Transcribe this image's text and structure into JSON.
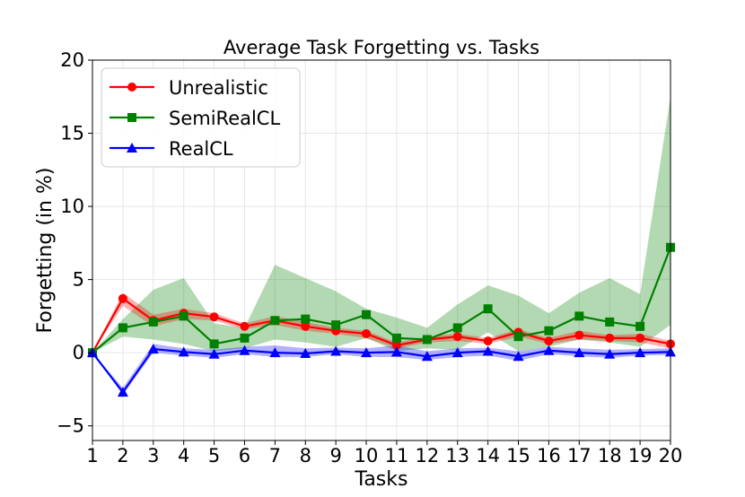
{
  "chart_data": {
    "type": "line",
    "title": "Average Task Forgetting vs. Tasks",
    "xlabel": "Tasks",
    "ylabel": "Forgetting (in %)",
    "x": [
      1,
      2,
      3,
      4,
      5,
      6,
      7,
      8,
      9,
      10,
      11,
      12,
      13,
      14,
      15,
      16,
      17,
      18,
      19,
      20
    ],
    "xlim": [
      1,
      20
    ],
    "ylim": [
      -6,
      20
    ],
    "xticks": [
      "1",
      "2",
      "3",
      "4",
      "5",
      "6",
      "7",
      "8",
      "9",
      "10",
      "11",
      "12",
      "13",
      "14",
      "15",
      "16",
      "17",
      "18",
      "19",
      "20"
    ],
    "yticks": [
      "−5",
      "0",
      "5",
      "10",
      "15",
      "20"
    ],
    "ytick_values": [
      -5,
      0,
      5,
      10,
      15,
      20
    ],
    "grid": true,
    "legend_position": "top-left",
    "series": [
      {
        "name": "Unrealistic",
        "color": "#ff0000",
        "marker": "circle",
        "values": [
          0,
          3.7,
          2.2,
          2.7,
          2.45,
          1.8,
          2.2,
          1.8,
          1.5,
          1.3,
          0.5,
          0.9,
          1.1,
          0.8,
          1.4,
          0.8,
          1.2,
          1.0,
          1.0,
          0.6
        ],
        "lower": [
          0,
          3.2,
          1.8,
          2.3,
          2.2,
          1.6,
          1.9,
          1.5,
          1.3,
          1.0,
          0.3,
          0.7,
          0.8,
          0.6,
          1.1,
          0.6,
          0.9,
          0.8,
          0.7,
          0.3
        ],
        "upper": [
          0,
          4.1,
          2.6,
          3.0,
          2.7,
          2.0,
          2.5,
          2.1,
          1.7,
          1.5,
          0.7,
          1.1,
          1.3,
          1.0,
          1.6,
          1.0,
          1.5,
          1.2,
          1.3,
          0.8
        ]
      },
      {
        "name": "SemiRealCL",
        "color": "#008000",
        "marker": "square",
        "values": [
          0,
          1.7,
          2.1,
          2.5,
          0.6,
          1.0,
          2.2,
          2.3,
          1.9,
          2.6,
          1.0,
          0.9,
          1.7,
          3.0,
          1.1,
          1.5,
          2.5,
          2.1,
          1.8,
          7.2
        ],
        "lower": [
          0,
          1.1,
          0.9,
          0.6,
          0.1,
          0.3,
          0.9,
          0.7,
          0.4,
          1.0,
          0.1,
          0.3,
          0.2,
          1.4,
          0.1,
          0.4,
          0.9,
          0.7,
          0.4,
          1.9
        ],
        "upper": [
          0,
          2.3,
          4.3,
          5.1,
          2.0,
          1.7,
          6.0,
          5.1,
          4.2,
          3.0,
          2.4,
          1.7,
          3.3,
          4.6,
          3.9,
          2.7,
          4.1,
          5.1,
          4.0,
          17.5
        ]
      },
      {
        "name": "RealCL",
        "color": "#0000ff",
        "marker": "triangle",
        "values": [
          0,
          -2.7,
          0.25,
          0.05,
          -0.1,
          0.15,
          0.0,
          -0.05,
          0.1,
          0.0,
          0.05,
          -0.25,
          0.0,
          0.1,
          -0.25,
          0.15,
          0.0,
          -0.1,
          0.0,
          0.05
        ],
        "lower": [
          0,
          -2.9,
          0.0,
          -0.2,
          -0.35,
          -0.1,
          -0.3,
          -0.3,
          -0.1,
          -0.3,
          -0.3,
          -0.5,
          -0.3,
          -0.2,
          -0.55,
          -0.1,
          -0.25,
          -0.35,
          -0.2,
          -0.15
        ],
        "upper": [
          0,
          -2.4,
          0.6,
          0.3,
          0.2,
          0.4,
          0.5,
          0.3,
          0.35,
          0.3,
          0.5,
          0.1,
          0.3,
          0.35,
          0.1,
          0.4,
          0.3,
          0.2,
          0.25,
          0.3
        ]
      }
    ]
  }
}
